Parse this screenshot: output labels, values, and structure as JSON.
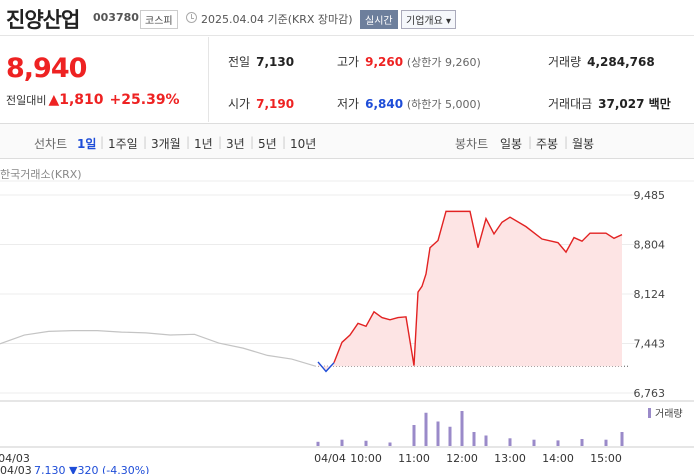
{
  "header": {
    "company_name": "진양산업",
    "ticker": "003780",
    "market": "코스피",
    "as_of": "2025.04.04 기준(KRX 장마감)",
    "realtime_button": "실시간",
    "overview_button": "기업개요 ▾"
  },
  "quote": {
    "current_price": "8,940",
    "change_label": "전일대비",
    "change_amount": "▲1,810",
    "change_percent": "+25.39%",
    "stats": {
      "prev_close": {
        "label": "전일",
        "value": "7,130"
      },
      "high": {
        "label": "고가",
        "value": "9,260",
        "note": "(상한가 9,260)"
      },
      "volume": {
        "label": "거래량",
        "value": "4,284,768"
      },
      "open": {
        "label": "시가",
        "value": "7,190"
      },
      "low": {
        "label": "저가",
        "value": "6,840",
        "note": "(하한가 5,000)"
      },
      "trading_value": {
        "label": "거래대금",
        "value": "37,027 백만"
      }
    }
  },
  "period_bar": {
    "line_chart_label": "선차트",
    "line_periods": [
      "1일",
      "1주일",
      "3개월",
      "1년",
      "3년",
      "5년",
      "10년"
    ],
    "selected_period": "1일",
    "candle_chart_label": "봉차트",
    "candle_periods": [
      "일봉",
      "주봉",
      "월봉"
    ]
  },
  "chart_source": "한국거래소(KRX)",
  "colors": {
    "up": "#e22222",
    "down": "#1e4dd8",
    "prev_day_line": "#c4c4c4",
    "fill": "#fde4e4",
    "volume": "#9a8ac9"
  },
  "chart_data": {
    "type": "line",
    "title": "",
    "ylabel": "",
    "y_ticks": [
      "9,485",
      "8,804",
      "8,124",
      "7,443",
      "6,763"
    ],
    "y_range": [
      6763,
      9485
    ],
    "baseline_prev_close": 7130,
    "x_ticks": [
      "04/03",
      "04/04",
      "10:00",
      "11:00",
      "12:00",
      "13:00",
      "14:00",
      "15:00"
    ],
    "footer_prev": {
      "date": "04/03",
      "close": "7,130",
      "change": "▼320 (-4.30%)"
    },
    "volume_legend": "거래량",
    "series": [
      {
        "x": [
          "04/03 09:00",
          "04/03 09:30",
          "04/03 10:00",
          "04/03 10:30",
          "04/03 11:00",
          "04/03 11:30",
          "04/03 12:00",
          "04/03 12:30",
          "04/03 13:00",
          "04/03 13:30",
          "04/03 14:00",
          "04/03 14:30",
          "04/03 15:00",
          "04/03 15:30"
        ],
        "values": [
          7440,
          7560,
          7610,
          7620,
          7620,
          7600,
          7590,
          7560,
          7570,
          7450,
          7380,
          7280,
          7230,
          7130
        ]
      },
      {
        "x": [
          "09:00",
          "09:10",
          "09:20",
          "09:30",
          "09:40",
          "09:50",
          "10:00",
          "10:10",
          "10:20",
          "10:30",
          "10:40",
          "10:50",
          "11:00",
          "11:05",
          "11:10",
          "11:15",
          "11:20",
          "11:30",
          "11:40",
          "11:50",
          "12:00",
          "12:10",
          "12:20",
          "12:30",
          "12:40",
          "12:50",
          "13:00",
          "13:20",
          "13:40",
          "14:00",
          "14:10",
          "14:20",
          "14:30",
          "14:40",
          "15:00",
          "15:10",
          "15:20"
        ],
        "values": [
          7190,
          7060,
          7180,
          7460,
          7560,
          7720,
          7680,
          7880,
          7800,
          7770,
          7800,
          7810,
          7140,
          8150,
          8230,
          8400,
          8760,
          8860,
          9260,
          9260,
          9260,
          9260,
          8760,
          9160,
          8950,
          9110,
          9180,
          9050,
          8880,
          8830,
          8700,
          8900,
          8850,
          8960,
          8960,
          8890,
          8940
        ]
      }
    ],
    "volume_x": [
      "09:00",
      "09:30",
      "10:00",
      "10:30",
      "11:00",
      "11:15",
      "11:30",
      "11:45",
      "12:00",
      "12:15",
      "12:30",
      "13:00",
      "13:30",
      "14:00",
      "14:30",
      "15:00",
      "15:20"
    ],
    "volume_values": [
      12,
      18,
      15,
      10,
      60,
      95,
      70,
      55,
      100,
      40,
      30,
      22,
      18,
      16,
      20,
      18,
      40
    ]
  }
}
